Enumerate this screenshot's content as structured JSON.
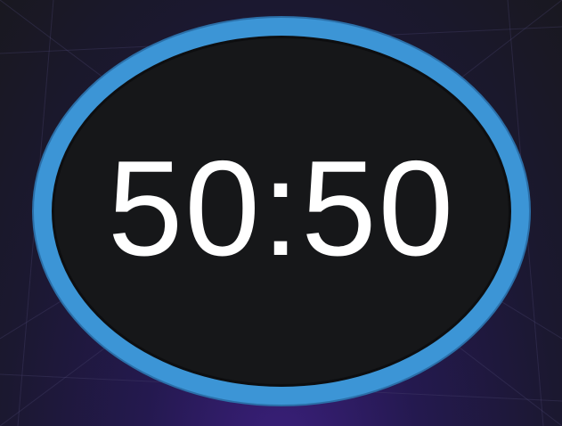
{
  "lifeline": {
    "label": "50:50",
    "name": "fifty-fifty"
  },
  "colors": {
    "ring": "#3c95d6",
    "face": "#161719",
    "text": "#ffffff",
    "background": "#1b1830",
    "glow": "#3b1f7d"
  }
}
